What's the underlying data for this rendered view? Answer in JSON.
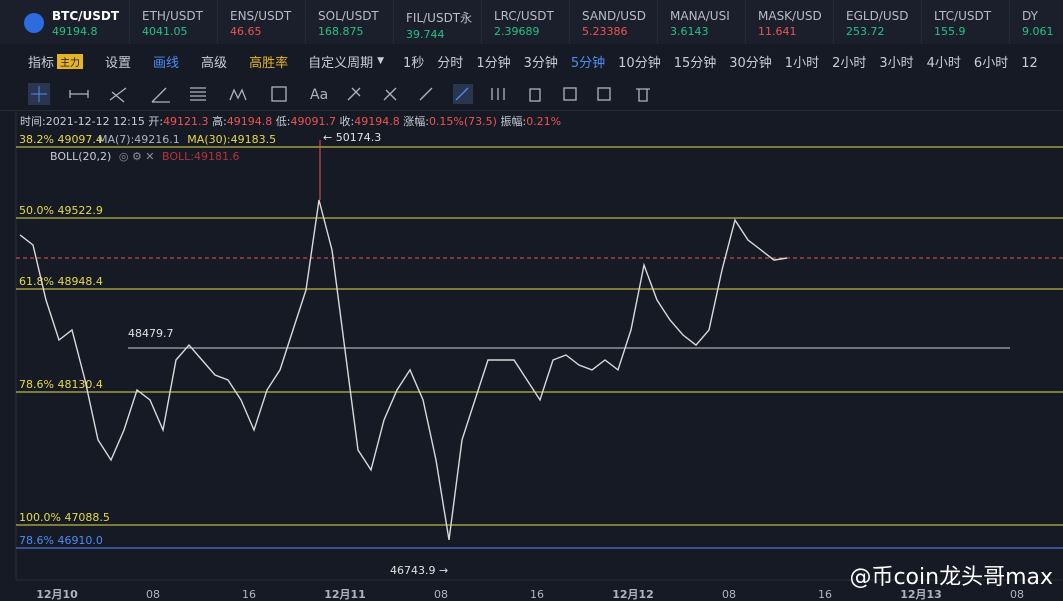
{
  "tickers": [
    {
      "symbol": "BTC/USDT",
      "price": "49194.8",
      "color": "#26c281"
    },
    {
      "symbol": "ETH/USDT",
      "price": "4041.05",
      "color": "#26c281"
    },
    {
      "symbol": "ENS/USDT",
      "price": "46.65",
      "color": "#ef5350"
    },
    {
      "symbol": "SOL/USDT",
      "price": "168.875",
      "color": "#26c281"
    },
    {
      "symbol": "FIL/USDT永",
      "price": "39.744",
      "color": "#26c281"
    },
    {
      "symbol": "LRC/USDT",
      "price": "2.39689",
      "color": "#26c281"
    },
    {
      "symbol": "SAND/USD",
      "price": "5.23386",
      "color": "#ef5350"
    },
    {
      "symbol": "MANA/USI",
      "price": "3.6143",
      "color": "#26c281"
    },
    {
      "symbol": "MASK/USD",
      "price": "11.641",
      "color": "#ef5350"
    },
    {
      "symbol": "EGLD/USD",
      "price": "253.72",
      "color": "#26c281"
    },
    {
      "symbol": "LTC/USDT",
      "price": "155.9",
      "color": "#26c281"
    },
    {
      "symbol": "DY",
      "price": "9.061",
      "color": "#26c281"
    }
  ],
  "toolbar": {
    "indicator": "指标",
    "indicator_badge": "主力",
    "settings": "设置",
    "draw": "画线",
    "advanced": "高级",
    "win_rate": "高胜率",
    "custom_period": "自定义周期",
    "periods": [
      "1秒",
      "分时",
      "1分钟",
      "3分钟",
      "5分钟",
      "10分钟",
      "15分钟",
      "30分钟",
      "1小时",
      "2小时",
      "3小时",
      "4小时",
      "6小时",
      "12"
    ],
    "active_period": "5分钟"
  },
  "info": {
    "time": "时间:2021-12-12 12:15",
    "open_label": "开:",
    "open": "49121.3",
    "high_label": "高:",
    "high": "49194.8",
    "low_label": "低:",
    "low": "49091.7",
    "close_label": "收:",
    "close": "49194.8",
    "change_label": "涨幅:",
    "change": "0.15%(73.5)",
    "amplitude_label": "振幅:",
    "amplitude": "0.21%",
    "ma7": "MA(7):49216.1",
    "ma30": "MA(30):49183.5",
    "boll": "BOLL(20,2)",
    "boll_value": "BOLL:49181.6"
  },
  "chart": {
    "type": "line",
    "color": "#d9d9d9",
    "ylim": [
      46582,
      50255
    ],
    "closes": [
      49408,
      49327,
      48883,
      48560,
      48641,
      48237,
      47753,
      47591,
      47833,
      48156,
      48076,
      47833,
      48398,
      48519,
      48398,
      48277,
      48237,
      48076,
      47833,
      48156,
      48318,
      48641,
      48963,
      49690,
      49286,
      48479,
      47672,
      47511,
      47914,
      48156,
      48318,
      48076,
      47591,
      46946,
      47753,
      48076,
      48398,
      48398,
      48398,
      48237,
      48076,
      48398,
      48439,
      48358,
      48318,
      48398,
      48318,
      48641,
      49165,
      48883,
      48721,
      48600,
      48519,
      48641,
      49125,
      49528,
      49367,
      49286,
      49205,
      49222
    ],
    "fib_levels": [
      "38.2% 49097.4",
      "50.0% 49522.9",
      "61.8% 48948.4",
      "78.6% 48130.4",
      "100.0% 47088.5",
      "78.6% 46910.0"
    ],
    "high_note": "← 50174.3",
    "low_note": "46743.9 →",
    "level_note": "48479.7",
    "x_labels": [
      "12月10",
      "08",
      "16",
      "12月11",
      "08",
      "16",
      "12月12",
      "08",
      "16",
      "12月13",
      "08"
    ],
    "watermark": "@币coin龙头哥max"
  }
}
